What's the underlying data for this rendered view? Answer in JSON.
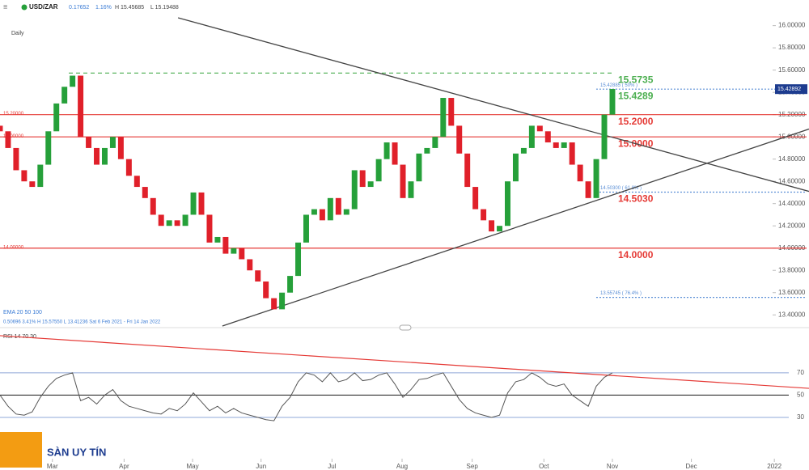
{
  "header": {
    "symbol": "USD/ZAR",
    "change": "0.17652",
    "change_pct": "1.16%",
    "high": "H 15.45685",
    "low": "L 15.19488",
    "interval": "Daily"
  },
  "legend": {
    "ema": "EMA 20 50 100",
    "stats": "0.50696  3.41%  H 15.57550  L 13.41236  Sat 6 Feb 2021 - Fri 14 Jan 2022"
  },
  "rsi_label": "RSI 14 70 30",
  "watermark": "SÀN UY TÍN",
  "chart_data": {
    "type": "candlestick",
    "up_color": "#26a03a",
    "down_color": "#e0202a",
    "xlim": [
      0,
      100.4
    ],
    "ylim": [
      13.3,
      16.07
    ],
    "xticks": [
      {
        "value": 6.5,
        "label": "Mar"
      },
      {
        "value": 15.4,
        "label": "Apr"
      },
      {
        "value": 23.9,
        "label": "May"
      },
      {
        "value": 32.4,
        "label": "Jun"
      },
      {
        "value": 41.2,
        "label": "Jul"
      },
      {
        "value": 49.9,
        "label": "Aug"
      },
      {
        "value": 58.6,
        "label": "Sep"
      },
      {
        "value": 67.5,
        "label": "Oct"
      },
      {
        "value": 76,
        "label": "Nov"
      },
      {
        "value": 85.8,
        "label": "Dec"
      },
      {
        "value": 96.1,
        "label": "2022"
      }
    ],
    "yticks": [
      {
        "value": 13.4,
        "label": "13.40000"
      },
      {
        "value": 13.6,
        "label": "13.60000"
      },
      {
        "value": 13.8,
        "label": "13.80000"
      },
      {
        "value": 14,
        "label": "14.00000"
      },
      {
        "value": 14.2,
        "label": "14.20000"
      },
      {
        "value": 14.4,
        "label": "14.40000"
      },
      {
        "value": 14.6,
        "label": "14.60000"
      },
      {
        "value": 14.8,
        "label": "14.80000"
      },
      {
        "value": 15,
        "label": "15.00000"
      },
      {
        "value": 15.2,
        "label": "15.20000"
      },
      {
        "value": 15.4,
        "label": "15.40000"
      },
      {
        "value": 15.6,
        "label": "15.60000"
      },
      {
        "value": 15.8,
        "label": "15.80000"
      },
      {
        "value": 16,
        "label": "16.00000"
      }
    ],
    "open": [
      15.1,
      15.05,
      14.9,
      14.7,
      14.6,
      14.55,
      14.75,
      15.05,
      15.3,
      15.45,
      15.55,
      15.0,
      14.9,
      14.75,
      14.9,
      15.0,
      14.8,
      14.65,
      14.55,
      14.45,
      14.3,
      14.2,
      14.25,
      14.2,
      14.3,
      14.5,
      14.3,
      14.05,
      14.1,
      13.95,
      14.0,
      13.9,
      13.8,
      13.7,
      13.55,
      13.45,
      13.6,
      13.75,
      14.05,
      14.3,
      14.35,
      14.25,
      14.45,
      14.3,
      14.35,
      14.7,
      14.55,
      14.6,
      14.8,
      14.95,
      14.75,
      14.45,
      14.6,
      14.85,
      14.9,
      15.0,
      15.35,
      15.1,
      14.85,
      14.55,
      14.35,
      14.25,
      14.15,
      14.2,
      14.6,
      14.85,
      14.9,
      15.1,
      15.05,
      14.95,
      14.9,
      14.95,
      14.75,
      14.6,
      14.45,
      14.8,
      15.2
    ],
    "close": [
      15.05,
      14.9,
      14.7,
      14.6,
      14.55,
      14.75,
      15.05,
      15.3,
      15.45,
      15.55,
      15.0,
      14.9,
      14.75,
      14.9,
      15.0,
      14.8,
      14.65,
      14.55,
      14.45,
      14.3,
      14.2,
      14.25,
      14.2,
      14.3,
      14.5,
      14.3,
      14.05,
      14.1,
      13.95,
      14.0,
      13.9,
      13.8,
      13.7,
      13.55,
      13.45,
      13.6,
      13.75,
      14.05,
      14.3,
      14.35,
      14.25,
      14.45,
      14.3,
      14.35,
      14.7,
      14.55,
      14.6,
      14.8,
      14.95,
      14.75,
      14.45,
      14.6,
      14.85,
      14.9,
      15.0,
      15.35,
      15.1,
      14.85,
      14.55,
      14.35,
      14.25,
      14.15,
      14.2,
      14.6,
      14.85,
      14.9,
      15.1,
      15.05,
      14.95,
      14.9,
      14.95,
      14.75,
      14.6,
      14.45,
      14.8,
      15.2,
      15.43
    ],
    "levels": [
      {
        "value": 15.5735,
        "color": "#4caf50",
        "style": "dashed",
        "label": "15.5735"
      },
      {
        "value": 15.42885,
        "color": "#5b8fd6",
        "style": "dotted",
        "label": "15.4289",
        "label_color": "#4caf50",
        "fib_label": "15.42885 ( 50% )"
      },
      {
        "value": 15.2,
        "color": "#e53935",
        "style": "solid",
        "label": "15.2000",
        "axis_label": "15.20000"
      },
      {
        "value": 15,
        "color": "#e53935",
        "style": "solid",
        "label": "15.0000",
        "axis_label": "15.00000"
      },
      {
        "value": 14.503,
        "color": "#5b8fd6",
        "style": "dotted",
        "label": "14.5030",
        "label_color": "#e53935",
        "fib_label": "14.50300 ( 61.8% )"
      },
      {
        "value": 14,
        "color": "#e53935",
        "style": "solid",
        "label": "14.0000",
        "axis_label": "14.00000"
      },
      {
        "value": 13.55745,
        "color": "#5b8fd6",
        "style": "dotted",
        "fib_label": "13.55745 ( 76.4% )"
      }
    ],
    "trendlines": [
      {
        "x": [
          22.1,
          100.4
        ],
        "y": [
          16.07,
          14.51
        ]
      },
      {
        "x": [
          27.6,
          100.4
        ],
        "y": [
          13.3,
          15.07
        ]
      }
    ],
    "last_price": 15.42892,
    "rsi": {
      "ylim": [
        19.8,
        107
      ],
      "yticks": [
        30,
        50,
        70
      ],
      "color": "#555",
      "values": [
        50,
        40,
        33,
        32,
        35,
        48,
        58,
        65,
        68,
        70,
        45,
        48,
        42,
        50,
        55,
        45,
        40,
        38,
        36,
        34,
        33,
        38,
        36,
        42,
        52,
        44,
        36,
        40,
        34,
        38,
        34,
        32,
        30,
        28,
        27,
        40,
        48,
        62,
        70,
        68,
        62,
        70,
        62,
        64,
        70,
        63,
        64,
        68,
        70,
        60,
        48,
        55,
        64,
        65,
        68,
        70,
        58,
        46,
        38,
        34,
        32,
        30,
        32,
        52,
        62,
        64,
        70,
        66,
        60,
        58,
        60,
        50,
        45,
        40,
        58,
        66,
        70
      ],
      "trendline": {
        "x": [
          0,
          100.4
        ],
        "y": [
          103.4,
          56.1
        ]
      }
    }
  }
}
